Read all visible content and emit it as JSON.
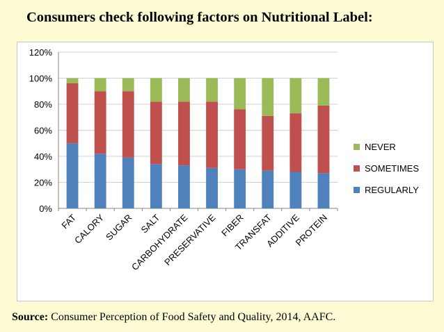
{
  "page": {
    "title": "Consumers check following factors on Nutritional Label:",
    "source_label": "Source:",
    "source_text": "Consumer Perception of Food Safety and Quality, 2014, AAFC."
  },
  "colors": {
    "background": "#fdfbd3",
    "regularly": "#4f81bd",
    "sometimes": "#c0504d",
    "never": "#9bbb59",
    "gridline": "#d0d0d0"
  },
  "chart_data": {
    "type": "bar",
    "stacked": true,
    "categories": [
      "FAT",
      "CALORY",
      "SUGAR",
      "SALT",
      "CARBOHYDRATE",
      "PRESERVATIVE",
      "FIBER",
      "TRANSFAT",
      "ADDITIVE",
      "PROTEIN"
    ],
    "series": [
      {
        "name": "REGULARLY",
        "color": "#4f81bd",
        "values": [
          50,
          42,
          39,
          34,
          33,
          31,
          30,
          29,
          28,
          27
        ]
      },
      {
        "name": "SOMETIMES",
        "color": "#c0504d",
        "values": [
          46,
          48,
          51,
          48,
          49,
          51,
          46,
          42,
          45,
          52
        ]
      },
      {
        "name": "NEVER",
        "color": "#9bbb59",
        "values": [
          4,
          10,
          10,
          18,
          18,
          18,
          24,
          29,
          27,
          21
        ]
      }
    ],
    "ylim": [
      0,
      120
    ],
    "yticks": [
      "0%",
      "20%",
      "40%",
      "60%",
      "80%",
      "100%",
      "120%"
    ],
    "ytick_values": [
      0,
      20,
      40,
      60,
      80,
      100,
      120
    ],
    "grid": true,
    "legend_position": "right",
    "legend_order": [
      "NEVER",
      "SOMETIMES",
      "REGULARLY"
    ]
  }
}
